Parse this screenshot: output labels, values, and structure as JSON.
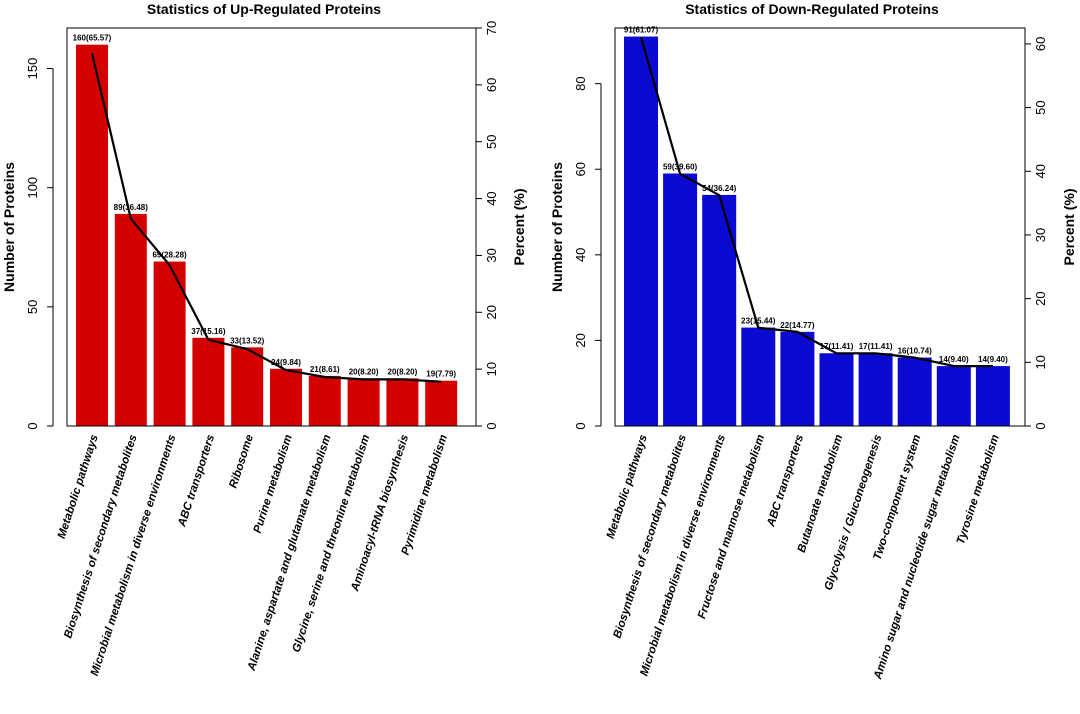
{
  "chart_data": [
    {
      "type": "bar",
      "title": "Statistics of Up-Regulated Proteins",
      "ylabel": "Number of Proteins",
      "y2label": "Percent (%)",
      "ylim": [
        0,
        167
      ],
      "yticks": [
        0,
        50,
        100,
        150
      ],
      "y2lim": [
        0,
        70
      ],
      "y2ticks": [
        0,
        10,
        20,
        30,
        40,
        50,
        60,
        70
      ],
      "bar_color": "#d40000",
      "line_color": "#000000",
      "categories": [
        "Metabolic pathways",
        "Biosynthesis of secondary metabolites",
        "Microbial metabolism in diverse environments",
        "ABC transporters",
        "Ribosome",
        "Purine metabolism",
        "Alanine, aspartate and glutamate metabolism",
        "Glycine, serine and threonine metabolism",
        "Aminoacyl-tRNA biosynthesis",
        "Pyrimidine metabolism"
      ],
      "values": [
        160,
        89,
        69,
        37,
        33,
        24,
        21,
        20,
        20,
        19
      ],
      "percent": [
        65.57,
        36.48,
        28.28,
        15.16,
        13.52,
        9.84,
        8.61,
        8.2,
        8.2,
        7.79
      ],
      "data_labels": [
        "160(65.57)",
        "89(36.48)",
        "69(28.28)",
        "37(15.16)",
        "33(13.52)",
        "24(9.84)",
        "21(8.61)",
        "20(8.20)",
        "20(8.20)",
        "19(7.79)"
      ]
    },
    {
      "type": "bar",
      "title": "Statistics of Down-Regulated Proteins",
      "ylabel": "Number of Proteins",
      "y2label": "Percent (%)",
      "ylim": [
        0,
        93
      ],
      "yticks": [
        0,
        20,
        40,
        60,
        80
      ],
      "y2lim": [
        0,
        62.5
      ],
      "y2ticks": [
        0,
        10,
        20,
        30,
        40,
        50,
        60
      ],
      "bar_color": "#0a0ad0",
      "line_color": "#000000",
      "categories": [
        "Metabolic pathways",
        "Biosynthesis of secondary metabolites",
        "Microbial metabolism in diverse environments",
        "Fructose and mannose metabolism",
        "ABC transporters",
        "Butanoate metabolism",
        "Glycolysis / Gluconeogenesis",
        "Two-component system",
        "Amino sugar and nucleotide sugar metabolism",
        "Tyrosine metabolism"
      ],
      "values": [
        91,
        59,
        54,
        23,
        22,
        17,
        17,
        16,
        14,
        14
      ],
      "percent": [
        61.07,
        39.6,
        36.24,
        15.44,
        14.77,
        11.41,
        11.41,
        10.74,
        9.4,
        9.4
      ],
      "data_labels": [
        "91(61.07)",
        "59(39.60)",
        "54(36.24)",
        "23(15.44)",
        "22(14.77)",
        "17(11.41)",
        "17(11.41)",
        "16(10.74)",
        "14(9.40)",
        "14(9.40)"
      ]
    }
  ]
}
